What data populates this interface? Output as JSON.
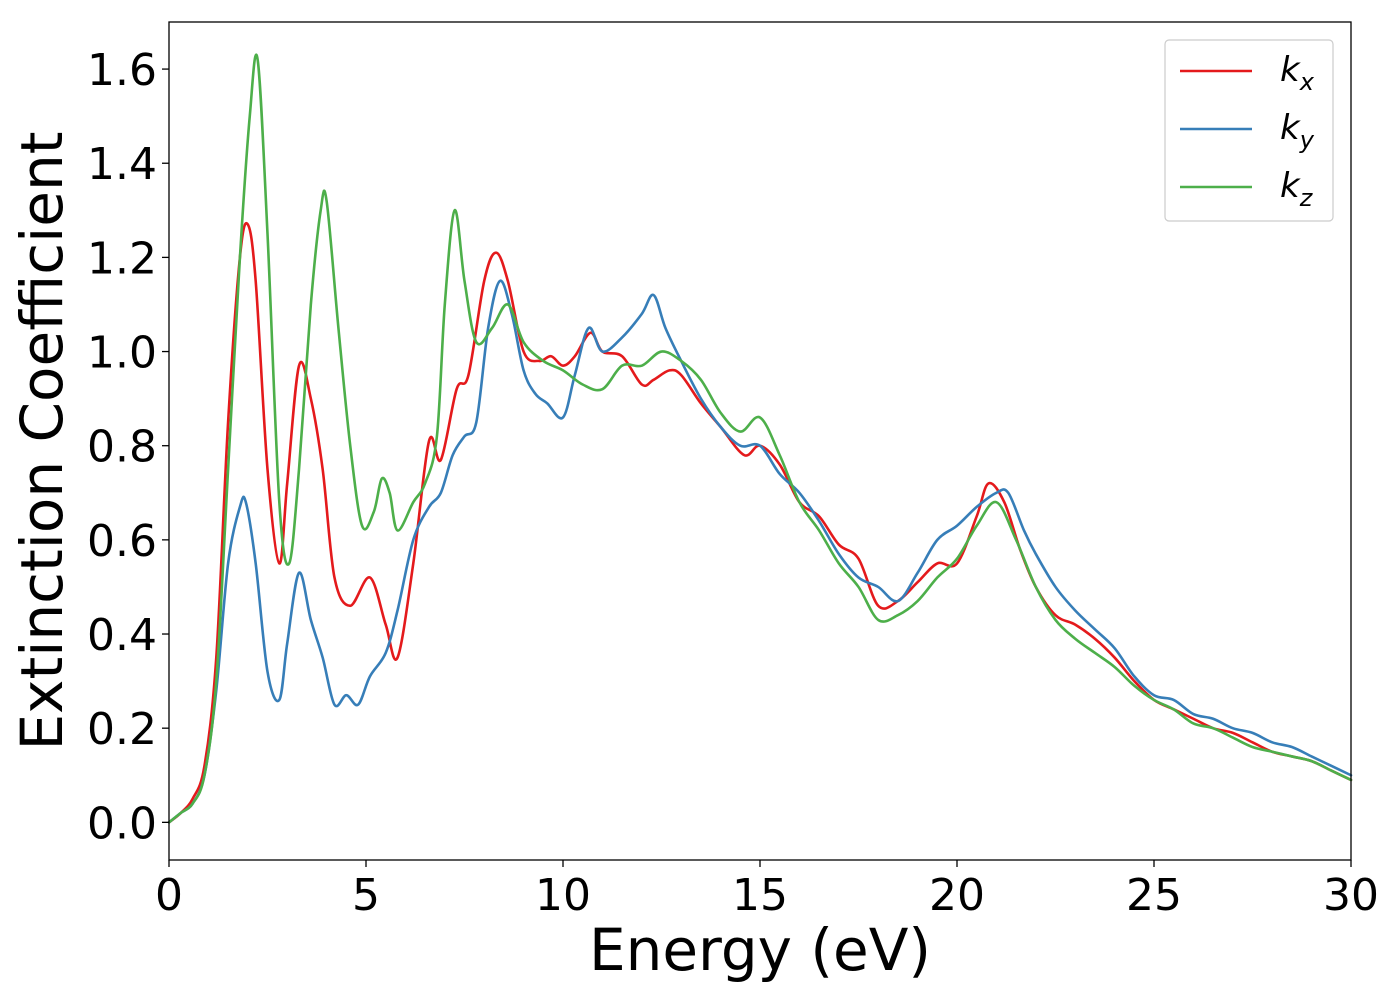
{
  "chart_data": {
    "type": "line",
    "title": "",
    "xlabel": "Energy (eV)",
    "ylabel": "Extinction Coefficient",
    "xlim": [
      0,
      30
    ],
    "ylim": [
      -0.08,
      1.7
    ],
    "xticks": [
      0,
      5,
      10,
      15,
      20,
      25,
      30
    ],
    "xtick_labels": [
      "0",
      "5",
      "10",
      "15",
      "20",
      "25",
      "30"
    ],
    "yticks": [
      0.0,
      0.2,
      0.4,
      0.6,
      0.8,
      1.0,
      1.2,
      1.4,
      1.6
    ],
    "ytick_labels": [
      "0.0",
      "0.2",
      "0.4",
      "0.6",
      "0.8",
      "1.0",
      "1.2",
      "1.4",
      "1.6"
    ],
    "grid": false,
    "legend_position": "top-right",
    "series": [
      {
        "name": "k_x",
        "label_main": "k",
        "label_sub": "x",
        "color": "#e41a1c",
        "x": [
          0,
          0.3,
          0.6,
          0.9,
          1.2,
          1.5,
          1.8,
          2.0,
          2.2,
          2.5,
          2.8,
          3.0,
          3.3,
          3.6,
          3.9,
          4.2,
          4.6,
          5.1,
          5.5,
          5.8,
          6.2,
          6.6,
          6.9,
          7.3,
          7.6,
          8.0,
          8.3,
          8.6,
          9.0,
          9.4,
          9.7,
          10.0,
          10.3,
          10.7,
          11.0,
          11.5,
          12.0,
          12.3,
          12.7,
          13.0,
          13.5,
          14.0,
          14.6,
          15.0,
          15.5,
          16.0,
          16.5,
          17.0,
          17.5,
          18.0,
          18.5,
          19.0,
          19.5,
          20.0,
          20.5,
          20.8,
          21.2,
          21.6,
          22.0,
          22.5,
          23.0,
          23.5,
          24.0,
          24.5,
          25.0,
          25.5,
          26.0,
          26.5,
          27.0,
          27.5,
          28.0,
          28.5,
          29.0,
          29.5,
          30.0
        ],
        "y": [
          0.0,
          0.02,
          0.05,
          0.12,
          0.35,
          0.85,
          1.2,
          1.27,
          1.15,
          0.75,
          0.55,
          0.72,
          0.97,
          0.9,
          0.75,
          0.52,
          0.46,
          0.52,
          0.42,
          0.35,
          0.55,
          0.81,
          0.77,
          0.92,
          0.95,
          1.15,
          1.21,
          1.15,
          1.0,
          0.98,
          0.99,
          0.97,
          0.99,
          1.04,
          1.0,
          0.99,
          0.93,
          0.94,
          0.96,
          0.95,
          0.89,
          0.84,
          0.78,
          0.8,
          0.76,
          0.68,
          0.65,
          0.59,
          0.56,
          0.46,
          0.47,
          0.51,
          0.55,
          0.55,
          0.65,
          0.72,
          0.68,
          0.58,
          0.5,
          0.44,
          0.42,
          0.39,
          0.35,
          0.3,
          0.26,
          0.24,
          0.22,
          0.2,
          0.19,
          0.17,
          0.15,
          0.14,
          0.13,
          0.11,
          0.09
        ]
      },
      {
        "name": "k_y",
        "label_main": "k",
        "label_sub": "y",
        "color": "#377eb8",
        "x": [
          0,
          0.3,
          0.6,
          0.9,
          1.2,
          1.5,
          1.8,
          1.95,
          2.2,
          2.5,
          2.8,
          3.0,
          3.3,
          3.6,
          3.9,
          4.2,
          4.5,
          4.8,
          5.1,
          5.5,
          5.8,
          6.2,
          6.6,
          6.9,
          7.2,
          7.5,
          7.8,
          8.1,
          8.4,
          8.7,
          9.0,
          9.3,
          9.6,
          10.0,
          10.3,
          10.65,
          11.0,
          11.5,
          12.0,
          12.3,
          12.6,
          13.0,
          13.5,
          14.0,
          14.5,
          15.0,
          15.5,
          16.0,
          16.5,
          17.0,
          17.5,
          18.0,
          18.5,
          19.0,
          19.5,
          20.0,
          20.5,
          21.0,
          21.3,
          21.7,
          22.0,
          22.5,
          23.0,
          23.5,
          24.0,
          24.5,
          25.0,
          25.5,
          26.0,
          26.5,
          27.0,
          27.5,
          28.0,
          28.5,
          29.0,
          29.5,
          30.0
        ],
        "y": [
          0.0,
          0.02,
          0.04,
          0.1,
          0.28,
          0.55,
          0.67,
          0.68,
          0.55,
          0.32,
          0.26,
          0.38,
          0.53,
          0.43,
          0.35,
          0.25,
          0.27,
          0.25,
          0.31,
          0.36,
          0.45,
          0.6,
          0.67,
          0.7,
          0.78,
          0.82,
          0.85,
          1.05,
          1.15,
          1.08,
          0.96,
          0.91,
          0.89,
          0.86,
          0.95,
          1.05,
          1.0,
          1.03,
          1.08,
          1.12,
          1.05,
          0.98,
          0.9,
          0.84,
          0.8,
          0.8,
          0.74,
          0.7,
          0.64,
          0.57,
          0.52,
          0.5,
          0.47,
          0.53,
          0.6,
          0.63,
          0.67,
          0.7,
          0.7,
          0.62,
          0.57,
          0.5,
          0.45,
          0.41,
          0.37,
          0.31,
          0.27,
          0.26,
          0.23,
          0.22,
          0.2,
          0.19,
          0.17,
          0.16,
          0.14,
          0.12,
          0.1
        ]
      },
      {
        "name": "k_z",
        "label_main": "k",
        "label_sub": "z",
        "color": "#4daf4a",
        "x": [
          0,
          0.3,
          0.6,
          0.9,
          1.2,
          1.5,
          1.8,
          2.05,
          2.25,
          2.5,
          2.8,
          3.05,
          3.3,
          3.6,
          3.85,
          4.0,
          4.3,
          4.6,
          4.9,
          5.2,
          5.4,
          5.6,
          5.8,
          6.2,
          6.5,
          6.8,
          7.0,
          7.25,
          7.5,
          7.8,
          8.2,
          8.6,
          9.0,
          9.5,
          10.0,
          10.5,
          11.0,
          11.5,
          12.0,
          12.5,
          13.0,
          13.5,
          14.0,
          14.5,
          15.0,
          15.5,
          16.0,
          16.5,
          17.0,
          17.5,
          18.0,
          18.5,
          19.0,
          19.5,
          20.0,
          20.5,
          21.0,
          21.5,
          22.0,
          22.5,
          23.0,
          23.5,
          24.0,
          24.5,
          25.0,
          25.5,
          26.0,
          26.5,
          27.0,
          27.5,
          28.0,
          28.5,
          29.0,
          29.5,
          30.0
        ],
        "y": [
          0.0,
          0.02,
          0.04,
          0.1,
          0.3,
          0.75,
          1.2,
          1.5,
          1.62,
          1.25,
          0.68,
          0.55,
          0.75,
          1.1,
          1.3,
          1.32,
          1.05,
          0.8,
          0.63,
          0.66,
          0.73,
          0.7,
          0.62,
          0.68,
          0.72,
          0.82,
          1.1,
          1.3,
          1.15,
          1.02,
          1.05,
          1.1,
          1.02,
          0.98,
          0.96,
          0.93,
          0.92,
          0.97,
          0.97,
          1.0,
          0.98,
          0.94,
          0.87,
          0.83,
          0.86,
          0.78,
          0.68,
          0.62,
          0.55,
          0.5,
          0.43,
          0.44,
          0.47,
          0.52,
          0.56,
          0.63,
          0.68,
          0.6,
          0.5,
          0.43,
          0.39,
          0.36,
          0.33,
          0.29,
          0.26,
          0.24,
          0.21,
          0.2,
          0.18,
          0.16,
          0.15,
          0.14,
          0.13,
          0.11,
          0.09
        ]
      }
    ]
  }
}
